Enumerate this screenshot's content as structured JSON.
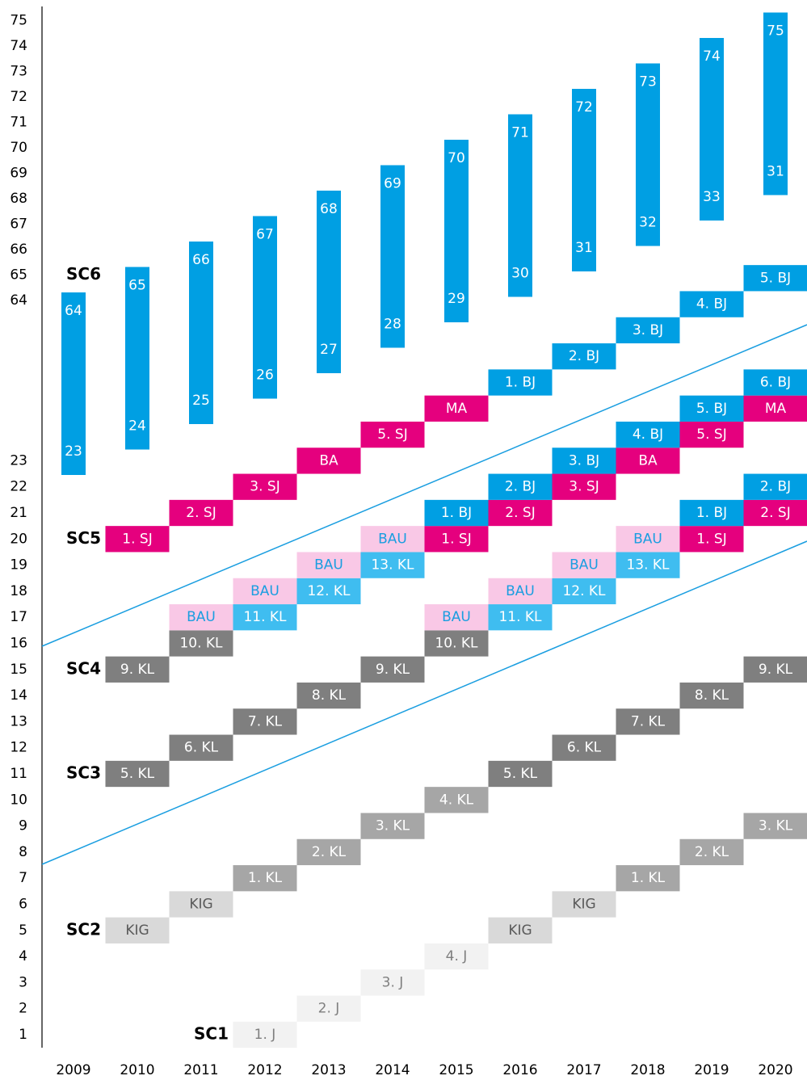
{
  "left_axis_lower": [
    1,
    2,
    3,
    4,
    5,
    6,
    7,
    8,
    9,
    10,
    11,
    12,
    13,
    14,
    15,
    16,
    17,
    18,
    19,
    20,
    21,
    22,
    23
  ],
  "left_axis_upper": [
    64,
    65,
    66,
    67,
    68,
    69,
    70,
    71,
    72,
    73,
    74,
    75
  ],
  "years": [
    "2009",
    "2010",
    "2011",
    "2012",
    "2013",
    "2014",
    "2015",
    "2016",
    "2017",
    "2018",
    "2019",
    "2020"
  ],
  "styles": {
    "j": {
      "fill": "#f2f2f2",
      "text": "#7f7f7f"
    },
    "kig": {
      "fill": "#d9d9d9",
      "text": "#595959"
    },
    "kl1": {
      "fill": "#a6a6a6",
      "text": "#ffffff"
    },
    "kl2": {
      "fill": "#7f7f7f",
      "text": "#ffffff"
    },
    "kl3": {
      "fill": "#3fbdf0",
      "text": "#ffffff"
    },
    "bau": {
      "fill": "#f9c8e6",
      "text": "#1a9ee0"
    },
    "sj": {
      "fill": "#e5007e",
      "text": "#ffffff"
    },
    "bj": {
      "fill": "#009fe3",
      "text": "#ffffff"
    }
  },
  "bar_color": "#009fe3",
  "sc_labels": [
    {
      "text": "SC1",
      "year": "2012",
      "row": 1
    },
    {
      "text": "SC2",
      "year": "2010",
      "row": 5
    },
    {
      "text": "SC3",
      "year": "2010",
      "row": 11
    },
    {
      "text": "SC4",
      "year": "2010",
      "row": 15
    },
    {
      "text": "SC5",
      "year": "2010",
      "row": 20
    },
    {
      "text": "SC6",
      "year": "2010",
      "upper": 65
    }
  ],
  "sc6_bars": [
    {
      "year": "2009",
      "top": 64,
      "bottom": 23
    },
    {
      "year": "2010",
      "top": 65,
      "bottom": 24
    },
    {
      "year": "2011",
      "top": 66,
      "bottom": 25
    },
    {
      "year": "2012",
      "top": 67,
      "bottom": 26
    },
    {
      "year": "2013",
      "top": 68,
      "bottom": 27
    },
    {
      "year": "2014",
      "top": 69,
      "bottom": 28
    },
    {
      "year": "2015",
      "top": 70,
      "bottom": 29
    },
    {
      "year": "2016",
      "top": 71,
      "bottom": 30
    },
    {
      "year": "2017",
      "top": 72,
      "bottom": 31
    },
    {
      "year": "2018",
      "top": 73,
      "bottom": 32
    },
    {
      "year": "2019",
      "top": 74,
      "bottom": 33
    },
    {
      "year": "2020",
      "top": 75,
      "bottom": 31
    }
  ],
  "blocks": [
    {
      "text": "1. J",
      "year": "2012",
      "row": 1,
      "style": "j"
    },
    {
      "text": "2. J",
      "year": "2013",
      "row": 2,
      "style": "j"
    },
    {
      "text": "3. J",
      "year": "2014",
      "row": 3,
      "style": "j"
    },
    {
      "text": "4. J",
      "year": "2015",
      "row": 4,
      "style": "j"
    },
    {
      "text": "KIG",
      "year": "2010",
      "row": 5,
      "style": "kig"
    },
    {
      "text": "KIG",
      "year": "2011",
      "row": 6,
      "style": "kig"
    },
    {
      "text": "KIG",
      "year": "2016",
      "row": 5,
      "style": "kig"
    },
    {
      "text": "KIG",
      "year": "2017",
      "row": 6,
      "style": "kig"
    },
    {
      "text": "1. KL",
      "year": "2012",
      "row": 7,
      "style": "kl1"
    },
    {
      "text": "2. KL",
      "year": "2013",
      "row": 8,
      "style": "kl1"
    },
    {
      "text": "3. KL",
      "year": "2014",
      "row": 9,
      "style": "kl1"
    },
    {
      "text": "4. KL",
      "year": "2015",
      "row": 10,
      "style": "kl1"
    },
    {
      "text": "1. KL",
      "year": "2018",
      "row": 7,
      "style": "kl1"
    },
    {
      "text": "2. KL",
      "year": "2019",
      "row": 8,
      "style": "kl1"
    },
    {
      "text": "3. KL",
      "year": "2020",
      "row": 9,
      "style": "kl1"
    },
    {
      "text": "5. KL",
      "year": "2010",
      "row": 11,
      "style": "kl2"
    },
    {
      "text": "6. KL",
      "year": "2011",
      "row": 12,
      "style": "kl2"
    },
    {
      "text": "7. KL",
      "year": "2012",
      "row": 13,
      "style": "kl2"
    },
    {
      "text": "8. KL",
      "year": "2013",
      "row": 14,
      "style": "kl2"
    },
    {
      "text": "9. KL",
      "year": "2014",
      "row": 15,
      "style": "kl2"
    },
    {
      "text": "10. KL",
      "year": "2015",
      "row": 16,
      "style": "kl2"
    },
    {
      "text": "5. KL",
      "year": "2016",
      "row": 11,
      "style": "kl2"
    },
    {
      "text": "6. KL",
      "year": "2017",
      "row": 12,
      "style": "kl2"
    },
    {
      "text": "7. KL",
      "year": "2018",
      "row": 13,
      "style": "kl2"
    },
    {
      "text": "8. KL",
      "year": "2019",
      "row": 14,
      "style": "kl2"
    },
    {
      "text": "9. KL",
      "year": "2020",
      "row": 15,
      "style": "kl2"
    },
    {
      "text": "9. KL",
      "year": "2010",
      "row": 15,
      "style": "kl2"
    },
    {
      "text": "10. KL",
      "year": "2011",
      "row": 16,
      "style": "kl2"
    },
    {
      "text": "11. KL",
      "year": "2012",
      "row": 17,
      "style": "kl3"
    },
    {
      "text": "12. KL",
      "year": "2013",
      "row": 18,
      "style": "kl3"
    },
    {
      "text": "13. KL",
      "year": "2014",
      "row": 19,
      "style": "kl3"
    },
    {
      "text": "11. KL",
      "year": "2016",
      "row": 17,
      "style": "kl3"
    },
    {
      "text": "12. KL",
      "year": "2017",
      "row": 18,
      "style": "kl3"
    },
    {
      "text": "13. KL",
      "year": "2018",
      "row": 19,
      "style": "kl3"
    },
    {
      "text": "BAU",
      "year": "2011",
      "row": 17,
      "style": "bau"
    },
    {
      "text": "BAU",
      "year": "2012",
      "row": 18,
      "style": "bau"
    },
    {
      "text": "BAU",
      "year": "2013",
      "row": 19,
      "style": "bau"
    },
    {
      "text": "BAU",
      "year": "2014",
      "row": 20,
      "style": "bau"
    },
    {
      "text": "BAU",
      "year": "2015",
      "row": 17,
      "style": "bau"
    },
    {
      "text": "BAU",
      "year": "2016",
      "row": 18,
      "style": "bau"
    },
    {
      "text": "BAU",
      "year": "2017",
      "row": 19,
      "style": "bau"
    },
    {
      "text": "BAU",
      "year": "2018",
      "row": 20,
      "style": "bau"
    },
    {
      "text": "1. SJ",
      "year": "2010",
      "row": 20,
      "style": "sj"
    },
    {
      "text": "2. SJ",
      "year": "2011",
      "row": 21,
      "style": "sj"
    },
    {
      "text": "3. SJ",
      "year": "2012",
      "row": 22,
      "style": "sj"
    },
    {
      "text": "BA",
      "year": "2013",
      "row": 23,
      "style": "sj"
    },
    {
      "text": "5. SJ",
      "year": "2014",
      "row": 24,
      "style": "sj"
    },
    {
      "text": "MA",
      "year": "2015",
      "row": 25,
      "style": "sj"
    },
    {
      "text": "1. BJ",
      "year": "2016",
      "row": 26,
      "style": "bj"
    },
    {
      "text": "2. BJ",
      "year": "2017",
      "row": 27,
      "style": "bj"
    },
    {
      "text": "3. BJ",
      "year": "2018",
      "row": 28,
      "style": "bj"
    },
    {
      "text": "4. BJ",
      "year": "2019",
      "row": 29,
      "style": "bj"
    },
    {
      "text": "5. BJ",
      "year": "2020",
      "row": 30,
      "style": "bj"
    },
    {
      "text": "1. SJ",
      "year": "2015",
      "row": 20,
      "style": "sj"
    },
    {
      "text": "2. SJ",
      "year": "2016",
      "row": 21,
      "style": "sj"
    },
    {
      "text": "3. SJ",
      "year": "2017",
      "row": 22,
      "style": "sj"
    },
    {
      "text": "BA",
      "year": "2018",
      "row": 23,
      "style": "sj"
    },
    {
      "text": "5. SJ",
      "year": "2019",
      "row": 24,
      "style": "sj"
    },
    {
      "text": "MA",
      "year": "2020",
      "row": 25,
      "style": "sj"
    },
    {
      "text": "1. BJ",
      "year": "2015",
      "row": 21,
      "style": "bj"
    },
    {
      "text": "2. BJ",
      "year": "2016",
      "row": 22,
      "style": "bj"
    },
    {
      "text": "3. BJ",
      "year": "2017",
      "row": 23,
      "style": "bj"
    },
    {
      "text": "4. BJ",
      "year": "2018",
      "row": 24,
      "style": "bj"
    },
    {
      "text": "5. BJ",
      "year": "2019",
      "row": 25,
      "style": "bj"
    },
    {
      "text": "6. BJ",
      "year": "2020",
      "row": 26,
      "style": "bj"
    },
    {
      "text": "1. SJ",
      "year": "2019",
      "row": 20,
      "style": "sj"
    },
    {
      "text": "2. SJ",
      "year": "2020",
      "row": 21,
      "style": "sj"
    },
    {
      "text": "1. BJ",
      "year": "2019",
      "row": 21,
      "style": "bj"
    },
    {
      "text": "2. BJ",
      "year": "2020",
      "row": 22,
      "style": "bj"
    }
  ]
}
